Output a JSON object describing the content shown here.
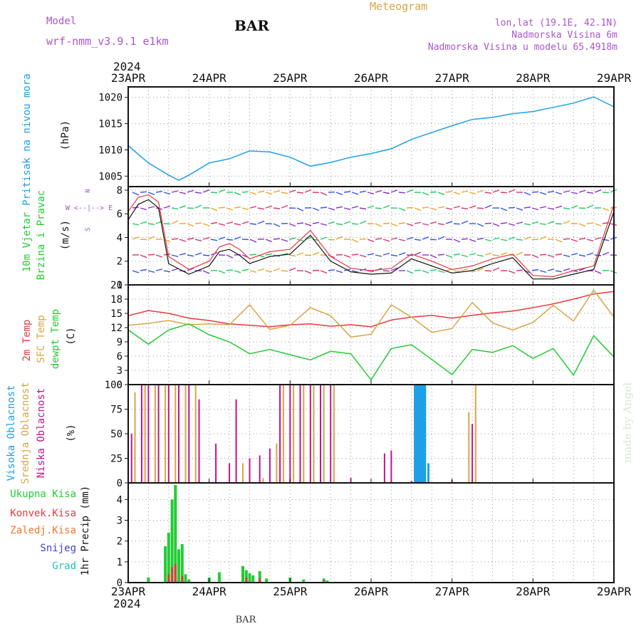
{
  "header": {
    "model_label": "Model",
    "model_name": "wrf-nmm_v3.9.1 e1km",
    "station": "BAR",
    "meteogram": "Meteogram",
    "lonlat": "lon,lat (19.1E, 42.1N)",
    "elevation": "Nadmorska Visina 6m",
    "model_elevation": "Nadmorska Visina u modelu 65.4918m",
    "year_top": "2024",
    "year_bottom": "2024",
    "footer_station": "BAR",
    "credit": "made by Angel"
  },
  "colors": {
    "pressure": "#1ea0e6",
    "t2m": "#e8393c",
    "sfc": "#d9a547",
    "dew": "#22cc33",
    "wind_speed": "#111111",
    "gust": "#e8393c",
    "high_cloud": "#1ea0e6",
    "mid_cloud": "#d9a547",
    "low_cloud": "#c0148c",
    "total_precip": "#22cc33",
    "conv_precip": "#e8393c",
    "frozen": "#f07830",
    "snow": "#4040e0",
    "graupel": "#22c4b4",
    "title_purple": "#aa55cc",
    "credit": "#d8e8d0"
  },
  "chart_data": [
    {
      "type": "line",
      "panel": "pressure",
      "ylabels": [
        "Pritisak na nivou mora",
        "(hPa)"
      ],
      "x_ticks": [
        "23APR",
        "24APR",
        "25APR",
        "26APR",
        "27APR",
        "28APR",
        "29APR"
      ],
      "yticks": [
        "1005",
        "1010",
        "1015",
        "1020"
      ],
      "ylim": [
        1003,
        1022
      ],
      "grid": true,
      "x": [
        "2024-04-23 00:00",
        "2024-04-23 06:00",
        "2024-04-23 12:00",
        "2024-04-23 15:00",
        "2024-04-23 18:00",
        "2024-04-24 00:00",
        "2024-04-24 06:00",
        "2024-04-24 12:00",
        "2024-04-24 18:00",
        "2024-04-25 00:00",
        "2024-04-25 06:00",
        "2024-04-25 12:00",
        "2024-04-25 18:00",
        "2024-04-26 00:00",
        "2024-04-26 06:00",
        "2024-04-26 12:00",
        "2024-04-26 18:00",
        "2024-04-27 00:00",
        "2024-04-27 06:00",
        "2024-04-27 12:00",
        "2024-04-27 18:00",
        "2024-04-28 00:00",
        "2024-04-28 06:00",
        "2024-04-28 12:00",
        "2024-04-28 18:00",
        "2024-04-29 00:00"
      ],
      "series": [
        {
          "name": "",
          "values": [
            1010.8,
            1007.5,
            1005.2,
            1004.2,
            1005.2,
            1007.5,
            1008.3,
            1009.8,
            1009.6,
            1008.6,
            1006.9,
            1007.6,
            1008.6,
            1009.3,
            1010.2,
            1012.0,
            1013.3,
            1014.6,
            1015.8,
            1016.2,
            1016.9,
            1017.3,
            1018.1,
            1018.9,
            1020.1,
            1018.2
          ]
        }
      ]
    },
    {
      "type": "line",
      "panel": "wind",
      "ylabels": [
        "10m Vjetar",
        "Brzina i Pravac",
        "(m/s)"
      ],
      "direction_legend": [
        "N",
        "W <--|--> E",
        "S"
      ],
      "yticks": [
        "0",
        "2",
        "4",
        "6",
        "8"
      ],
      "ylim": [
        0,
        8.3
      ],
      "grid": true,
      "x": [
        "2024-04-23 00:00",
        "2024-04-23 03:00",
        "2024-04-23 06:00",
        "2024-04-23 09:00",
        "2024-04-23 12:00",
        "2024-04-23 18:00",
        "2024-04-24 00:00",
        "2024-04-24 03:00",
        "2024-04-24 06:00",
        "2024-04-24 09:00",
        "2024-04-24 12:00",
        "2024-04-24 18:00",
        "2024-04-25 00:00",
        "2024-04-25 06:00",
        "2024-04-25 12:00",
        "2024-04-25 18:00",
        "2024-04-26 00:00",
        "2024-04-26 06:00",
        "2024-04-26 12:00",
        "2024-04-26 18:00",
        "2024-04-27 00:00",
        "2024-04-27 06:00",
        "2024-04-27 12:00",
        "2024-04-27 18:00",
        "2024-04-28 00:00",
        "2024-04-28 06:00",
        "2024-04-28 12:00",
        "2024-04-28 18:00",
        "2024-04-29 00:00"
      ],
      "series": [
        {
          "name": "speed",
          "values": [
            5.5,
            6.8,
            7.2,
            6.5,
            1.8,
            0.9,
            1.6,
            2.8,
            3.0,
            2.5,
            1.8,
            2.4,
            2.6,
            4.2,
            2.0,
            1.1,
            0.9,
            1.0,
            2.2,
            1.6,
            1.0,
            1.2,
            1.8,
            2.3,
            0.5,
            0.5,
            0.9,
            1.3,
            6.2
          ]
        },
        {
          "name": "gust",
          "values": [
            6.2,
            7.4,
            7.6,
            7.0,
            2.4,
            1.3,
            2.0,
            3.2,
            3.5,
            3.0,
            2.2,
            2.8,
            3.0,
            4.6,
            2.4,
            1.4,
            1.2,
            1.4,
            2.6,
            2.0,
            1.3,
            1.6,
            2.2,
            2.6,
            0.8,
            0.7,
            1.2,
            1.6,
            6.8
          ]
        }
      ]
    },
    {
      "type": "line",
      "panel": "temperature",
      "ylabels": [
        "2m Temp",
        "SFC Temp",
        "dewpt Temp",
        "(C)"
      ],
      "yticks": [
        "0",
        "3",
        "6",
        "9",
        "12",
        "15",
        "18",
        "21"
      ],
      "ylim": [
        0,
        21
      ],
      "grid": true,
      "x": [
        "2024-04-23 00:00",
        "2024-04-23 06:00",
        "2024-04-23 12:00",
        "2024-04-23 18:00",
        "2024-04-24 00:00",
        "2024-04-24 06:00",
        "2024-04-24 12:00",
        "2024-04-24 18:00",
        "2024-04-25 00:00",
        "2024-04-25 06:00",
        "2024-04-25 12:00",
        "2024-04-25 18:00",
        "2024-04-26 00:00",
        "2024-04-26 06:00",
        "2024-04-26 12:00",
        "2024-04-26 18:00",
        "2024-04-27 00:00",
        "2024-04-27 06:00",
        "2024-04-27 12:00",
        "2024-04-27 18:00",
        "2024-04-28 00:00",
        "2024-04-28 06:00",
        "2024-04-28 12:00",
        "2024-04-28 18:00",
        "2024-04-29 00:00"
      ],
      "series": [
        {
          "name": "2m Temp",
          "values": [
            14.5,
            15.6,
            15.0,
            14.0,
            13.5,
            12.8,
            12.5,
            12.2,
            12.6,
            12.8,
            12.3,
            12.6,
            12.2,
            13.6,
            14.2,
            14.6,
            14.0,
            14.6,
            15.1,
            15.5,
            16.2,
            17.0,
            18.0,
            19.1,
            19.6
          ]
        },
        {
          "name": "SFC Temp",
          "values": [
            12.5,
            12.9,
            13.5,
            12.6,
            12.8,
            12.6,
            16.8,
            11.6,
            12.5,
            16.2,
            14.5,
            10.0,
            10.6,
            16.8,
            14.2,
            11.0,
            11.8,
            17.3,
            13.0,
            11.5,
            13.1,
            16.7,
            13.4,
            19.9,
            14.2
          ]
        },
        {
          "name": "dewpt Temp",
          "values": [
            11.5,
            8.5,
            11.5,
            12.8,
            10.5,
            9.0,
            6.5,
            7.4,
            6.3,
            5.2,
            7.0,
            6.5,
            1.0,
            7.6,
            8.4,
            5.3,
            2.1,
            7.4,
            6.8,
            8.2,
            5.5,
            7.6,
            2.0,
            10.3,
            5.8
          ]
        }
      ]
    },
    {
      "type": "bar",
      "panel": "cloud",
      "ylabels": [
        "Visoka Oblacnost",
        "Srednja Oblacnost",
        "Niska Oblacnost",
        "(%)"
      ],
      "yticks": [
        "0",
        "25",
        "50",
        "75",
        "100"
      ],
      "ylim": [
        0,
        100
      ],
      "grid": true,
      "series": [
        {
          "name": "Niska Oblacnost",
          "x": [
            "2024-04-23 01:00",
            "2024-04-23 04:00",
            "2024-04-23 06:00",
            "2024-04-23 09:00",
            "2024-04-23 12:00",
            "2024-04-23 15:00",
            "2024-04-23 18:00",
            "2024-04-23 21:00",
            "2024-04-24 02:00",
            "2024-04-24 06:00",
            "2024-04-24 08:00",
            "2024-04-24 12:00",
            "2024-04-24 15:00",
            "2024-04-24 18:00",
            "2024-04-24 21:00",
            "2024-04-25 00:00",
            "2024-04-25 03:00",
            "2024-04-25 06:00",
            "2024-04-25 09:00",
            "2024-04-25 12:00",
            "2024-04-25 18:00",
            "2024-04-26 04:00",
            "2024-04-26 06:00",
            "2024-04-26 12:00",
            "2024-04-26 15:00",
            "2024-04-27 00:00",
            "2024-04-27 06:00"
          ],
          "values": [
            50,
            100,
            100,
            100,
            100,
            100,
            100,
            85,
            40,
            20,
            85,
            25,
            28,
            35,
            100,
            100,
            100,
            100,
            100,
            100,
            5,
            30,
            33,
            2,
            12,
            3,
            60
          ]
        },
        {
          "name": "Srednja Oblacnost",
          "x": [
            "2024-04-23 02:00",
            "2024-04-23 05:00",
            "2024-04-23 08:00",
            "2024-04-23 11:00",
            "2024-04-23 14:00",
            "2024-04-23 17:00",
            "2024-04-23 20:00",
            "2024-04-24 10:00",
            "2024-04-24 16:00",
            "2024-04-24 20:00",
            "2024-04-24 22:00",
            "2024-04-25 01:00",
            "2024-04-25 04:00",
            "2024-04-25 07:00",
            "2024-04-25 10:00",
            "2024-04-25 13:00",
            "2024-04-26 14:00",
            "2024-04-26 15:30",
            "2024-04-27 05:00",
            "2024-04-27 07:00"
          ],
          "values": [
            92,
            100,
            100,
            100,
            100,
            100,
            100,
            20,
            5,
            40,
            100,
            100,
            100,
            100,
            100,
            100,
            5,
            50,
            72,
            100
          ]
        },
        {
          "name": "Visoka Oblacnost",
          "x": [
            "2024-04-26 13:00",
            "2024-04-26 13:30",
            "2024-04-26 14:00",
            "2024-04-26 14:30",
            "2024-04-26 15:00",
            "2024-04-26 15:30",
            "2024-04-26 16:00",
            "2024-04-26 17:00"
          ],
          "values": [
            100,
            100,
            100,
            100,
            100,
            100,
            100,
            20
          ]
        }
      ]
    },
    {
      "type": "bar",
      "panel": "precipitation",
      "ylabels": [
        "1hr Precip (mm)"
      ],
      "legend": [
        "Ukupna Kisa",
        "Konvek.Kisa",
        "Zaledj.Kisa",
        "Snijeg",
        "Grad"
      ],
      "yticks": [
        "0",
        "1",
        "2",
        "3",
        "4"
      ],
      "ylim": [
        0,
        4.8
      ],
      "grid": true,
      "series": [
        {
          "name": "Ukupna Kisa",
          "x": [
            "2024-04-23 06:00",
            "2024-04-23 11:00",
            "2024-04-23 12:00",
            "2024-04-23 13:00",
            "2024-04-23 14:00",
            "2024-04-23 15:00",
            "2024-04-23 16:00",
            "2024-04-23 17:00",
            "2024-04-23 18:00",
            "2024-04-24 00:00",
            "2024-04-24 03:00",
            "2024-04-24 10:00",
            "2024-04-24 11:00",
            "2024-04-24 12:00",
            "2024-04-24 13:00",
            "2024-04-24 15:00",
            "2024-04-24 17:00",
            "2024-04-25 00:00",
            "2024-04-25 04:00",
            "2024-04-25 10:00",
            "2024-04-25 11:00"
          ],
          "values": [
            0.25,
            1.75,
            2.4,
            4.0,
            4.7,
            1.6,
            1.85,
            0.4,
            0.15,
            0.25,
            0.5,
            0.8,
            0.6,
            0.45,
            0.35,
            0.55,
            0.2,
            0.25,
            0.15,
            0.2,
            0.1
          ]
        },
        {
          "name": "Konvek.Kisa",
          "x": [
            "2024-04-23 12:00",
            "2024-04-23 13:00",
            "2024-04-23 14:00",
            "2024-04-23 16:00",
            "2024-04-24 11:00",
            "2024-04-24 15:00",
            "2024-04-25 10:00"
          ],
          "values": [
            0.4,
            0.75,
            0.9,
            0.3,
            0.25,
            0.2,
            0.1
          ]
        }
      ]
    }
  ]
}
